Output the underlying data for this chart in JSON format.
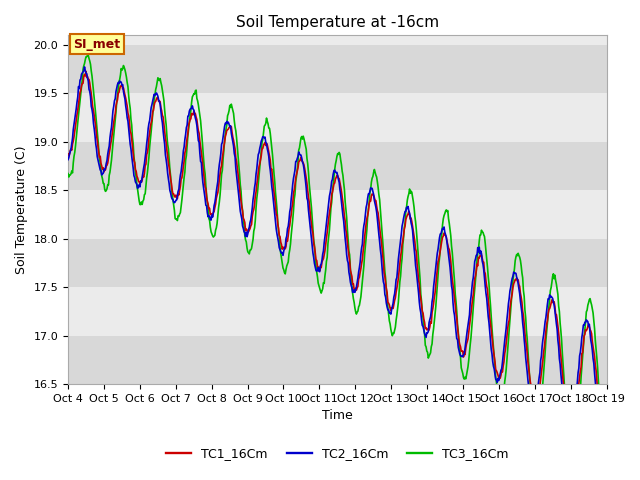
{
  "title": "Soil Temperature at -16cm",
  "xlabel": "Time",
  "ylabel": "Soil Temperature (C)",
  "ylim": [
    16.5,
    20.1
  ],
  "xlim_days": [
    0,
    15
  ],
  "bg_color": "#ffffff",
  "plot_bg_light": "#ebebeb",
  "plot_bg_dark": "#d8d8d8",
  "line_colors": [
    "#cc0000",
    "#0000cc",
    "#00bb00"
  ],
  "line_labels": [
    "TC1_16Cm",
    "TC2_16Cm",
    "TC3_16Cm"
  ],
  "annotation_text": "SI_met",
  "annotation_bg": "#ffff99",
  "annotation_border": "#cc6600",
  "tick_labels": [
    "Oct 4",
    "Oct 5",
    "Oct 6",
    "Oct 7",
    "Oct 8",
    "Oct 9",
    "Oct 10",
    "Oct 11",
    "Oct 12",
    "Oct 13",
    "Oct 14",
    "Oct 15",
    "Oct 16",
    "Oct 17",
    "Oct 18",
    "Oct 19"
  ],
  "n_points": 720,
  "title_fontsize": 11,
  "label_fontsize": 9,
  "tick_fontsize": 8,
  "legend_fontsize": 9,
  "linewidth": 1.2
}
